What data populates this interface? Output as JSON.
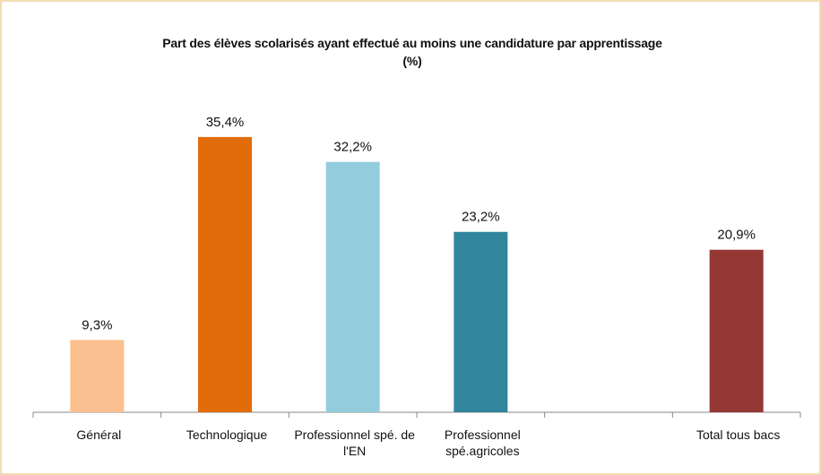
{
  "chart_data": {
    "type": "bar",
    "title": [
      "Part des élèves scolarisés ayant effectué au moins une candidature par apprentissage",
      "(%)"
    ],
    "categories": [
      "Général",
      "Technologique",
      "Professionnel spé. de l'EN",
      "Professionnel spé.agricoles",
      null,
      "Total tous bacs"
    ],
    "values": [
      9.3,
      35.4,
      32.2,
      23.2,
      null,
      20.9
    ],
    "value_labels": [
      "9,3%",
      "35,4%",
      "32,2%",
      "23,2%",
      null,
      "20,9%"
    ],
    "colors": [
      "#fac090",
      "#e36c0a",
      "#93cddd",
      "#31859c",
      null,
      "#953735"
    ],
    "ylim": [
      0,
      40
    ]
  }
}
